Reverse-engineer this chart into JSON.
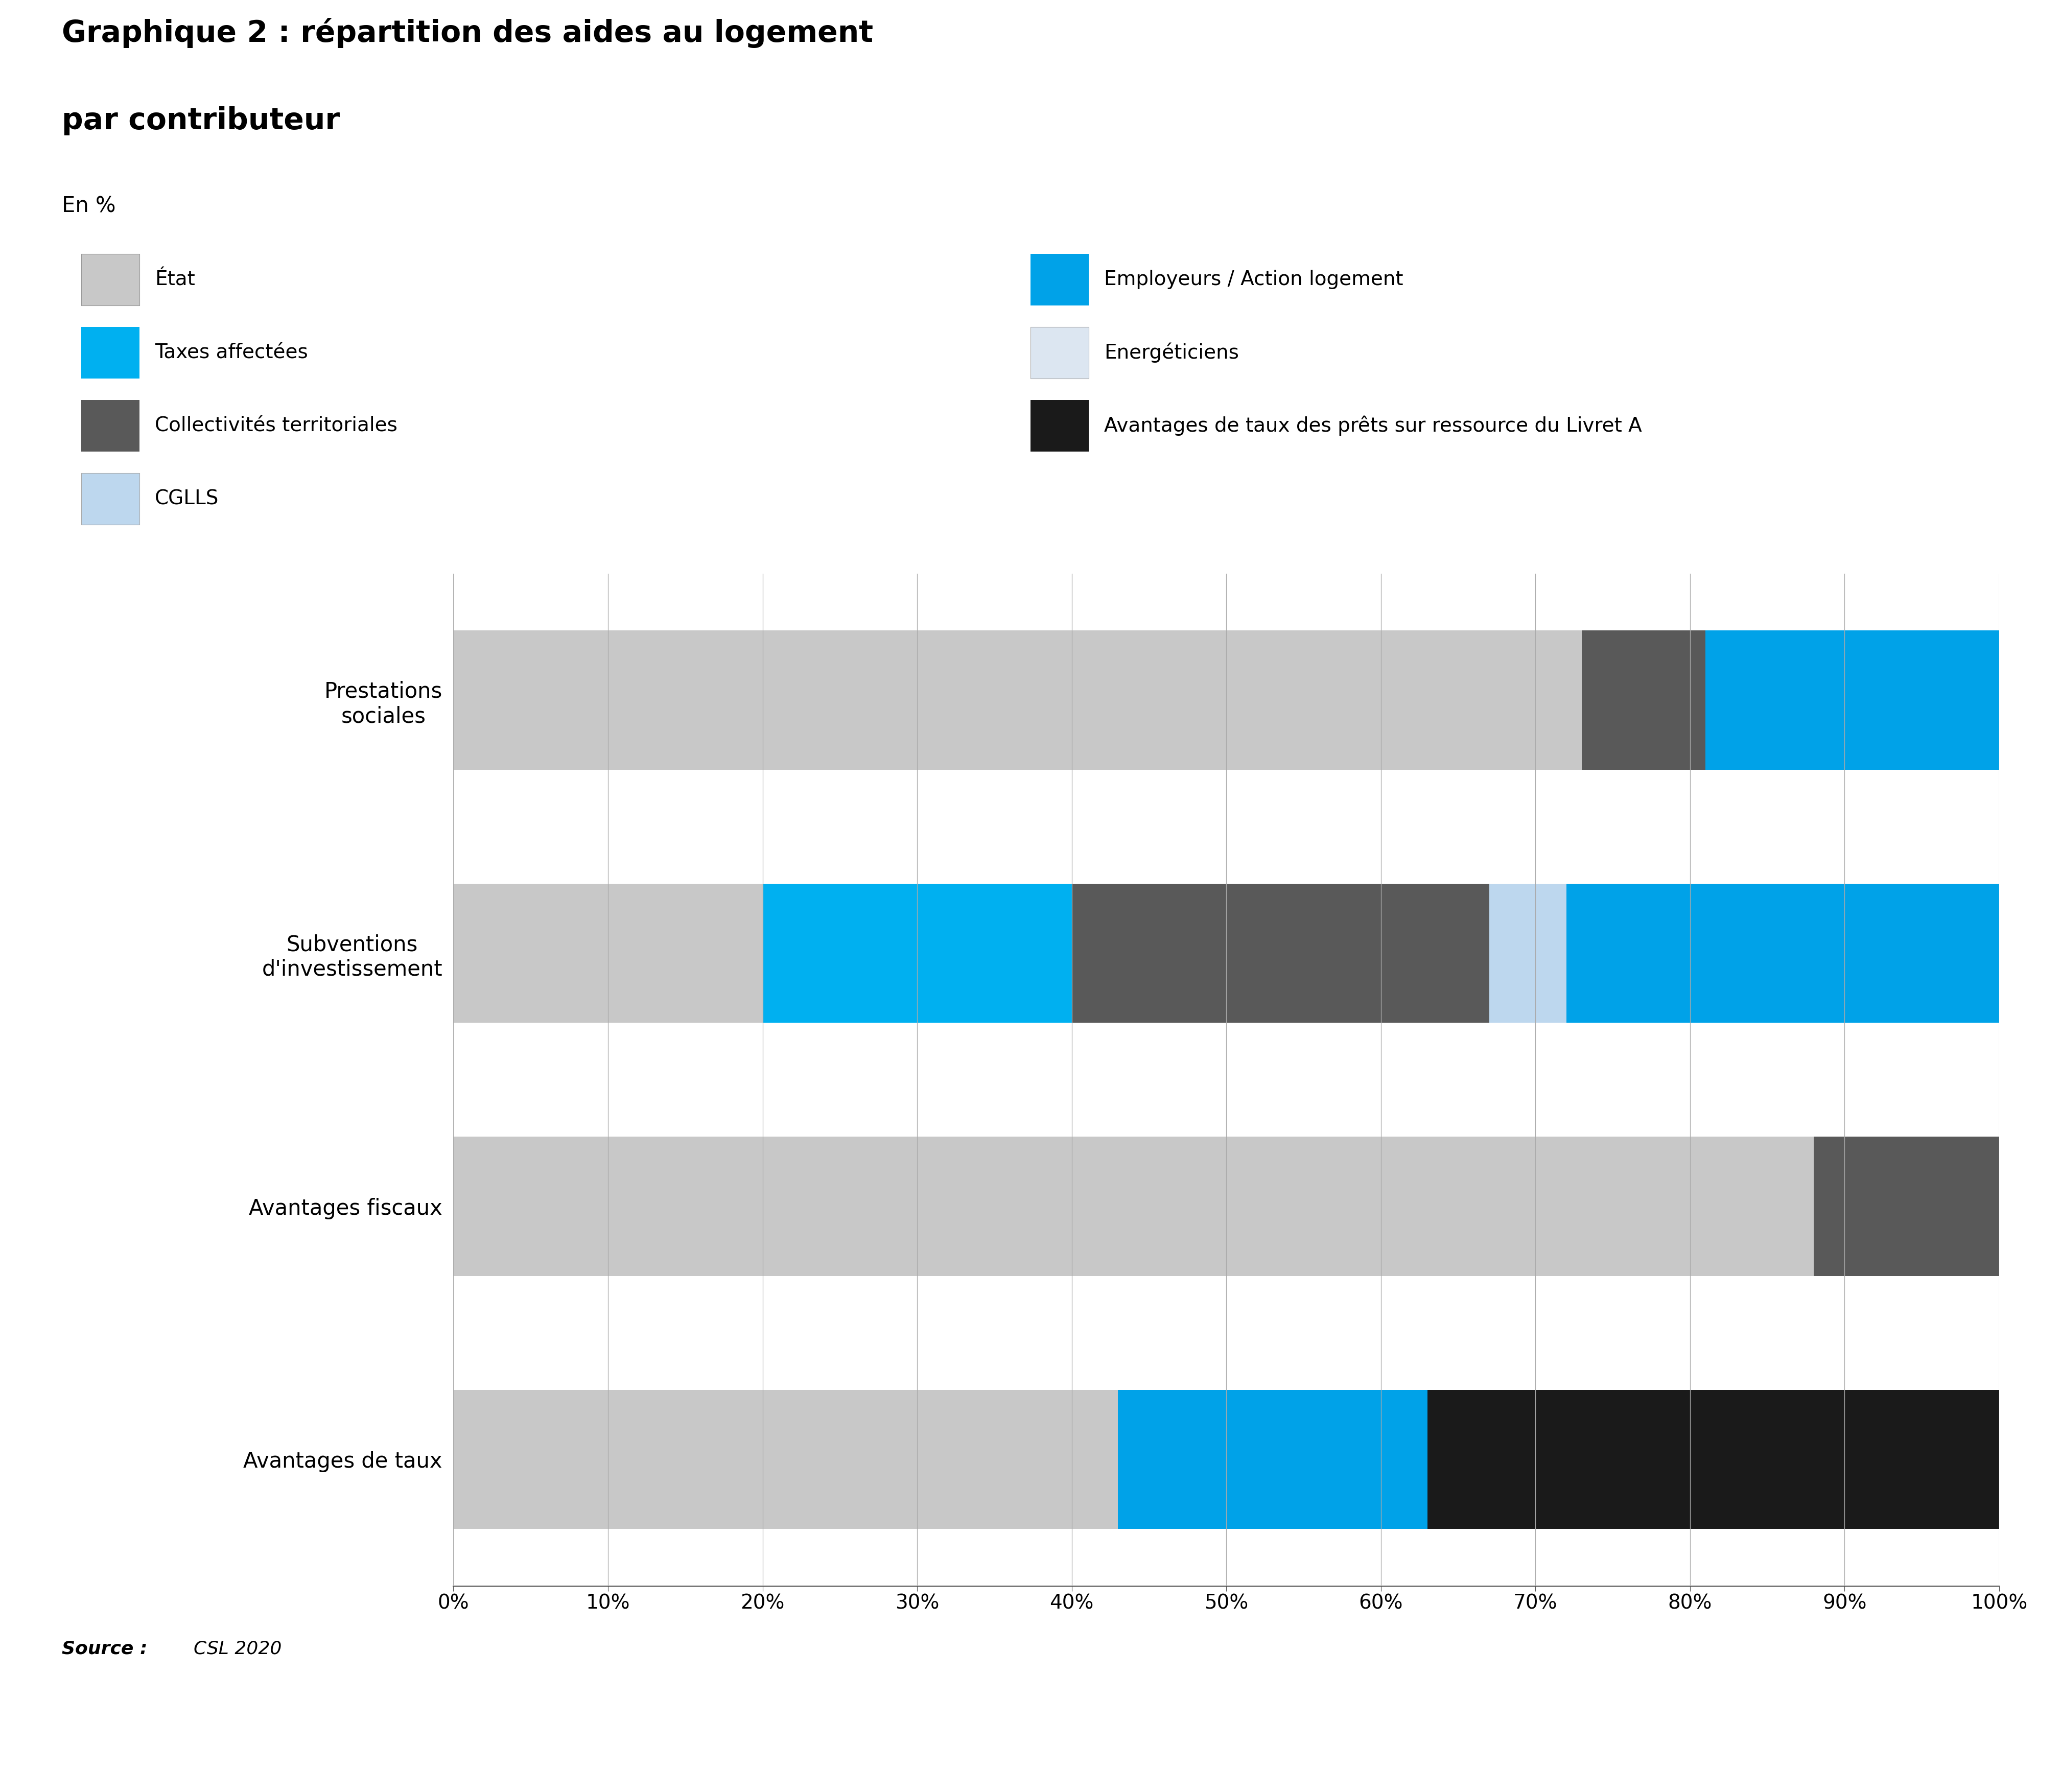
{
  "title_line1": "Graphique 2 : répartition des aides au logement",
  "title_line2": "par contributeur",
  "subtitle": "En %",
  "source_bold": "Source : ",
  "source_italic": "CSL 2020",
  "categories": [
    "Avantages de taux",
    "Avantages fiscaux",
    "Subventions\nd'investissement",
    "Prestations\nsociales"
  ],
  "segments": {
    "État": {
      "color": "#c8c8c8",
      "values": [
        43,
        88,
        20,
        73
      ]
    },
    "Taxes affectées": {
      "color": "#00b0f0",
      "values": [
        0,
        0,
        20,
        0
      ]
    },
    "Collectivités territoriales": {
      "color": "#595959",
      "values": [
        0,
        12,
        27,
        8
      ]
    },
    "CGLLS": {
      "color": "#bdd7ee",
      "values": [
        0,
        0,
        5,
        0
      ]
    },
    "Employeurs / Action logement": {
      "color": "#00a2e8",
      "values": [
        20,
        0,
        28,
        19
      ]
    },
    "Energéticiens": {
      "color": "#dce6f1",
      "values": [
        0,
        0,
        0,
        0
      ]
    },
    "Avantages de taux des prêts sur ressource du Livret A": {
      "color": "#1a1a1a",
      "values": [
        37,
        0,
        0,
        0
      ]
    }
  },
  "seg_order": [
    "État",
    "Taxes affectées",
    "Collectivités territoriales",
    "CGLLS",
    "Employeurs / Action logement",
    "Energéticiens",
    "Avantages de taux des prêts sur ressource du Livret A"
  ],
  "legend_left": [
    "État",
    "Taxes affectées",
    "Collectivités territoriales",
    "CGLLS"
  ],
  "legend_right": [
    "Employeurs / Action logement",
    "Energéticiens",
    "Avantages de taux des prêts sur ressource du Livret A"
  ],
  "legend_colors": {
    "État": "#c8c8c8",
    "Taxes affectées": "#00b0f0",
    "Collectivités territoriales": "#595959",
    "CGLLS": "#bdd7ee",
    "Employeurs / Action logement": "#00a2e8",
    "Energéticiens": "#dce6f1",
    "Avantages de taux des prêts sur ressource du Livret A": "#1a1a1a"
  },
  "legend_edge_colors": {
    "État": "#999999",
    "Taxes affectées": "none",
    "Collectivités territoriales": "none",
    "CGLLS": "#aaaaaa",
    "Employeurs / Action logement": "none",
    "Energéticiens": "#aaaaaa",
    "Avantages de taux des prêts sur ressource du Livret A": "none"
  },
  "xlim": [
    0,
    100
  ],
  "xticks": [
    0,
    10,
    20,
    30,
    40,
    50,
    60,
    70,
    80,
    90,
    100
  ],
  "xtick_labels": [
    "0%",
    "10%",
    "20%",
    "30%",
    "40%",
    "50%",
    "60%",
    "70%",
    "80%",
    "90%",
    "100%"
  ],
  "background_color": "#ffffff",
  "bar_height": 0.55,
  "grid_color": "#aaaaaa",
  "title_fontsize": 42,
  "subtitle_fontsize": 30,
  "label_fontsize": 30,
  "tick_fontsize": 28,
  "legend_fontsize": 28,
  "source_fontsize": 26
}
